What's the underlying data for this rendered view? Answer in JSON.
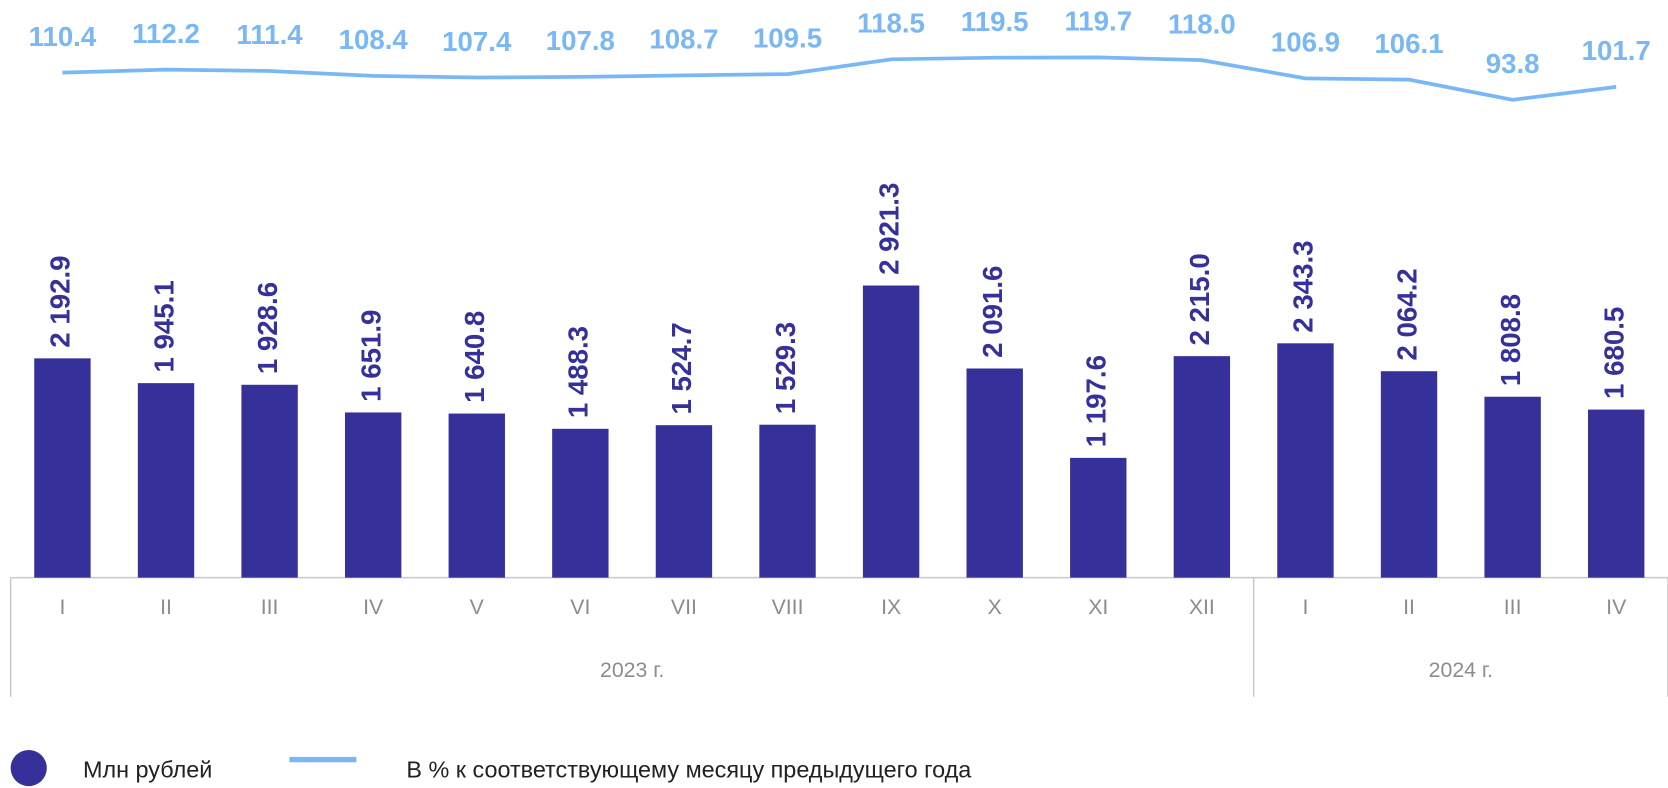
{
  "chart_data": {
    "type": "bar",
    "categories": [
      "I",
      "II",
      "III",
      "IV",
      "V",
      "VI",
      "VII",
      "VIII",
      "IX",
      "X",
      "XI",
      "XII",
      "I",
      "II",
      "III",
      "IV"
    ],
    "groups": [
      {
        "label": "2023 г.",
        "count": 12
      },
      {
        "label": "2024 г.",
        "count": 4
      }
    ],
    "series": [
      {
        "name": "Млн рублей",
        "type": "bar",
        "color": "#35309a",
        "values": [
          2192.9,
          1945.1,
          1928.6,
          1651.9,
          1640.8,
          1488.3,
          1524.7,
          1529.3,
          2921.3,
          2091.6,
          1197.6,
          2215.0,
          2343.3,
          2064.2,
          1808.8,
          1680.5
        ],
        "value_labels": [
          "2 192.9",
          "1 945.1",
          "1 928.6",
          "1 651.9",
          "1 640.8",
          "1 488.3",
          "1 524.7",
          "1 529.3",
          "2 921.3",
          "2 091.6",
          "1 197.6",
          "2 215.0",
          "2 343.3",
          "2 064.2",
          "1 808.8",
          "1 680.5"
        ]
      },
      {
        "name": "В % к соответствующему месяцу предыдущего года",
        "type": "line",
        "axis": "y2",
        "color": "#7ab8f5",
        "values": [
          110.4,
          112.2,
          111.4,
          108.4,
          107.4,
          107.8,
          108.7,
          109.5,
          118.5,
          119.5,
          119.7,
          118.0,
          106.9,
          106.1,
          93.8,
          101.7
        ],
        "value_labels": [
          "110.4",
          "112.2",
          "111.4",
          "108.4",
          "107.4",
          "107.8",
          "108.7",
          "109.5",
          "118.5",
          "119.5",
          "119.7",
          "118.0",
          "106.9",
          "106.1",
          "93.8",
          "101.7"
        ]
      }
    ],
    "ylim": [
      0,
      3500
    ],
    "y2lim": [
      60,
      140
    ],
    "legend": "bottom"
  }
}
